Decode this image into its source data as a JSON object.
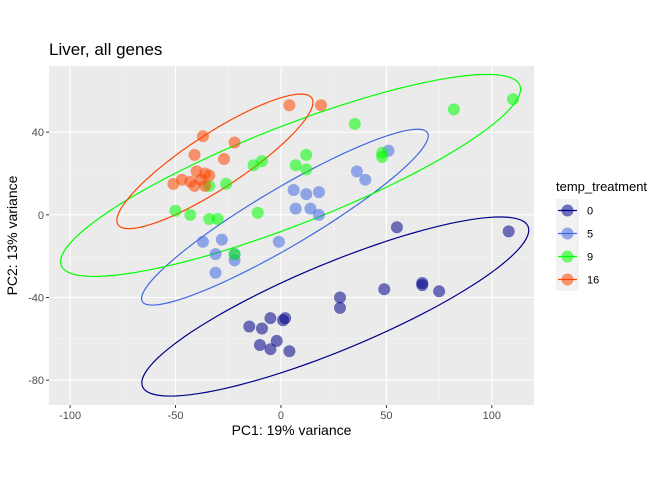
{
  "chart_data": {
    "type": "scatter",
    "title": "Liver, all genes",
    "xlabel": "PC1: 19% variance",
    "ylabel": "PC2: 13% variance",
    "xlim": [
      -110,
      120
    ],
    "ylim": [
      -92,
      72
    ],
    "x_ticks": [
      -100,
      -50,
      0,
      50,
      100
    ],
    "x_tick_labels": [
      "-100",
      "-50",
      "0",
      "50",
      "100"
    ],
    "y_ticks": [
      -80,
      -40,
      0,
      40
    ],
    "y_tick_labels": [
      "-80",
      "-40",
      "0",
      "40"
    ],
    "grid": true,
    "legend": {
      "title": "temp_treatment",
      "position": "right"
    },
    "series": [
      {
        "name": "0",
        "color": "#00008b",
        "ellipse": true,
        "points": [
          [
            108,
            -8
          ],
          [
            55,
            -6
          ],
          [
            67,
            -34
          ],
          [
            67,
            -33
          ],
          [
            75,
            -37
          ],
          [
            49,
            -36
          ],
          [
            28,
            -40
          ],
          [
            28,
            -45
          ],
          [
            2,
            -50
          ],
          [
            1,
            -51
          ],
          [
            -5,
            -50
          ],
          [
            -9,
            -55
          ],
          [
            -15,
            -54
          ],
          [
            -2,
            -61
          ],
          [
            -10,
            -63
          ],
          [
            -5,
            -65
          ],
          [
            4,
            -66
          ]
        ]
      },
      {
        "name": "5",
        "color": "#4169e1",
        "ellipse": true,
        "points": [
          [
            51,
            31
          ],
          [
            36,
            21
          ],
          [
            40,
            17
          ],
          [
            6,
            12
          ],
          [
            18,
            11
          ],
          [
            12,
            10
          ],
          [
            7,
            3
          ],
          [
            14,
            3
          ],
          [
            18,
            0
          ],
          [
            -1,
            -13
          ],
          [
            -28,
            -12
          ],
          [
            -37,
            -13
          ],
          [
            -31,
            -19
          ],
          [
            -22,
            -19
          ],
          [
            -22,
            -22
          ],
          [
            -31,
            -28
          ]
        ]
      },
      {
        "name": "9",
        "color": "#00ff00",
        "ellipse": true,
        "points": [
          [
            110,
            56
          ],
          [
            82,
            51
          ],
          [
            35,
            44
          ],
          [
            48,
            30
          ],
          [
            48,
            28
          ],
          [
            12,
            29
          ],
          [
            -9,
            26
          ],
          [
            -13,
            24
          ],
          [
            7,
            24
          ],
          [
            12,
            22
          ],
          [
            -26,
            15
          ],
          [
            -34,
            14
          ],
          [
            -50,
            2
          ],
          [
            -43,
            0
          ],
          [
            -34,
            -2
          ],
          [
            -30,
            -2
          ],
          [
            -11,
            1
          ],
          [
            -22,
            -19
          ]
        ]
      },
      {
        "name": "16",
        "color": "#ff4500",
        "ellipse": true,
        "points": [
          [
            4,
            53
          ],
          [
            19,
            53
          ],
          [
            -37,
            38
          ],
          [
            -22,
            35
          ],
          [
            -41,
            29
          ],
          [
            -27,
            27
          ],
          [
            -40,
            21
          ],
          [
            -36,
            20
          ],
          [
            -34,
            19
          ],
          [
            -38,
            17
          ],
          [
            -47,
            17
          ],
          [
            -43,
            16
          ],
          [
            -51,
            15
          ],
          [
            -41,
            14
          ],
          [
            -36,
            14
          ]
        ]
      }
    ]
  }
}
